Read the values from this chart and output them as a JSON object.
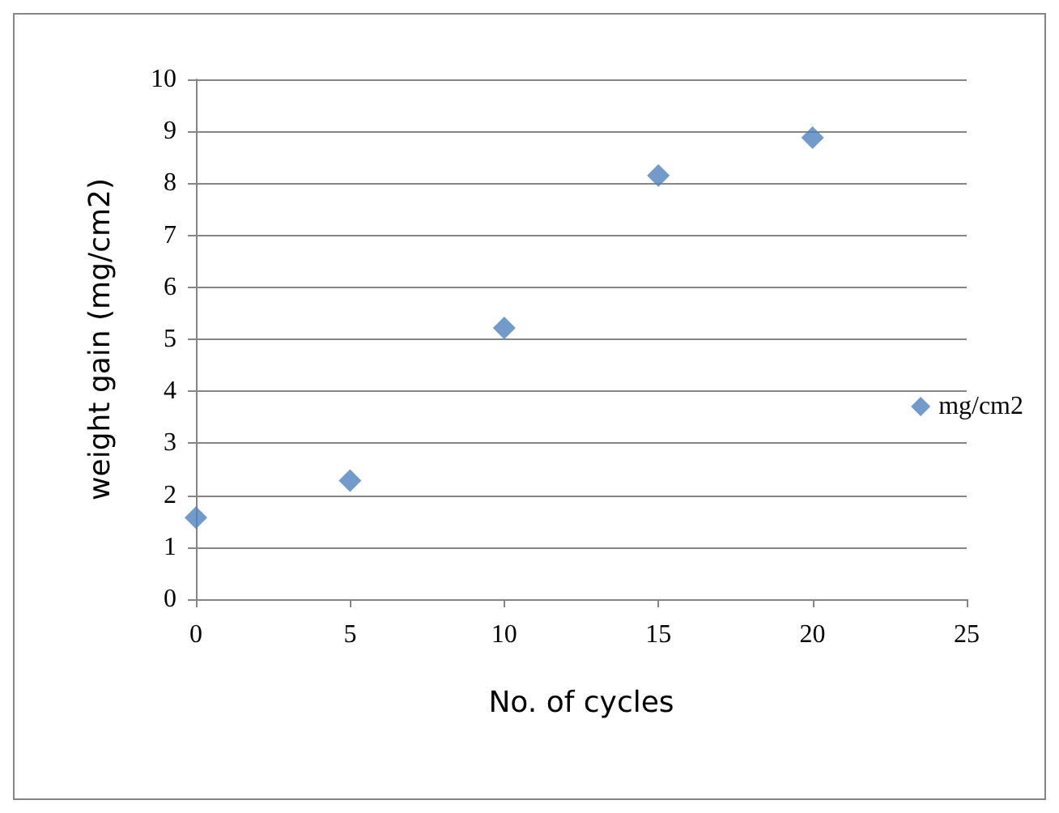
{
  "chart_data": {
    "type": "scatter",
    "xlabel": "No. of cycles",
    "ylabel": "weight gain (mg/cm2)",
    "x": [
      0,
      5,
      10,
      15,
      20
    ],
    "series": [
      {
        "name": "mg/cm2",
        "color": "#4f81bd",
        "values": [
          1.57,
          2.28,
          5.22,
          8.15,
          8.88
        ]
      }
    ],
    "xlim": [
      0,
      25
    ],
    "xticks": [
      0,
      5,
      10,
      15,
      20,
      25
    ],
    "ylim": [
      0,
      10
    ],
    "yticks": [
      0,
      1,
      2,
      3,
      4,
      5,
      6,
      7,
      8,
      9,
      10
    ],
    "grid": "y",
    "legend": "right",
    "marker": "diamond"
  }
}
